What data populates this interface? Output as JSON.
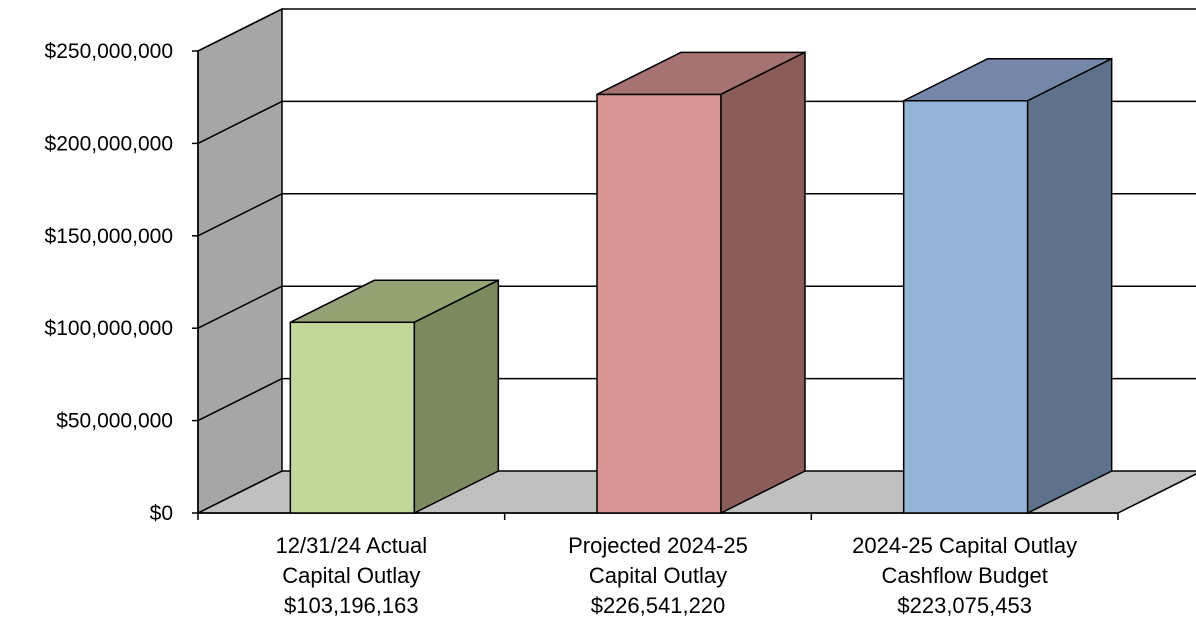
{
  "chart_data": {
    "type": "bar",
    "style": "3d-column",
    "categories": [
      [
        "12/31/24 Actual",
        "Capital Outlay",
        "$103,196,163"
      ],
      [
        "Projected 2024-25",
        "Capital Outlay",
        "$226,541,220"
      ],
      [
        "2024-25 Capital Outlay",
        "Cashflow Budget",
        "$223,075,453"
      ]
    ],
    "values": [
      103196163,
      226541220,
      223075453
    ],
    "colors": [
      {
        "front": "#c4d79b",
        "top": "#93a374",
        "side": "#7a8a5e"
      },
      {
        "front": "#d99594",
        "top": "#a57371",
        "side": "#8a5d5a"
      },
      {
        "front": "#95b3d7",
        "top": "#7487a8",
        "side": "#5e728c"
      }
    ],
    "ylim": [
      0,
      250000000
    ],
    "yticks": [
      "$0",
      "$50,000,000",
      "$100,000,000",
      "$150,000,000",
      "$200,000,000",
      "$250,000,000"
    ],
    "ytick_values": [
      0,
      50000000,
      100000000,
      150000000,
      200000000,
      250000000
    ],
    "grid": true,
    "wall_color": "#a6a6a6",
    "floor_color": "#c0c0c0",
    "title": "",
    "xlabel": "",
    "ylabel": ""
  }
}
